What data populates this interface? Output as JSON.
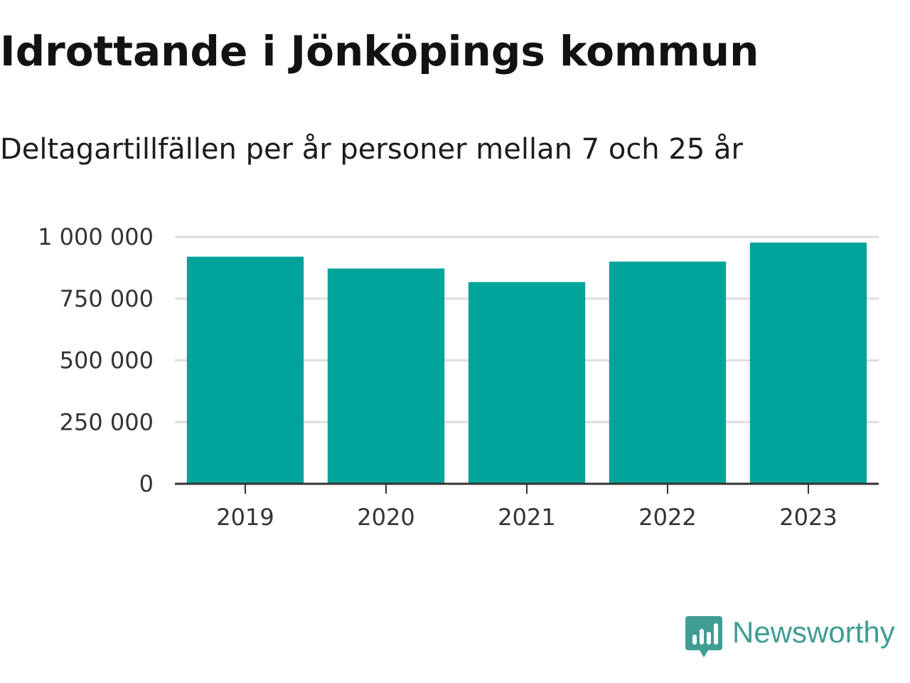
{
  "chart_data": {
    "type": "bar",
    "title": "Idrottande i Jönköpings kommun",
    "subtitle": "Deltagartillfällen per år personer mellan 7 och 25 år",
    "categories": [
      "2019",
      "2020",
      "2021",
      "2022",
      "2023"
    ],
    "values": [
      920000,
      872000,
      817000,
      900000,
      977000
    ],
    "ylim": [
      0,
      1000000
    ],
    "yticks": [
      0,
      250000,
      500000,
      750000,
      1000000
    ],
    "ytick_labels": [
      "0",
      "250 000",
      "500 000",
      "750 000",
      "1 000 000"
    ],
    "xlabel": "",
    "ylabel": "",
    "grid": true,
    "legend": "none",
    "bar_color": "#00a39a"
  },
  "brand": {
    "name": "Newsworthy",
    "icon": "newsworthy-chart-bubble-icon",
    "color": "#3f9d93"
  }
}
